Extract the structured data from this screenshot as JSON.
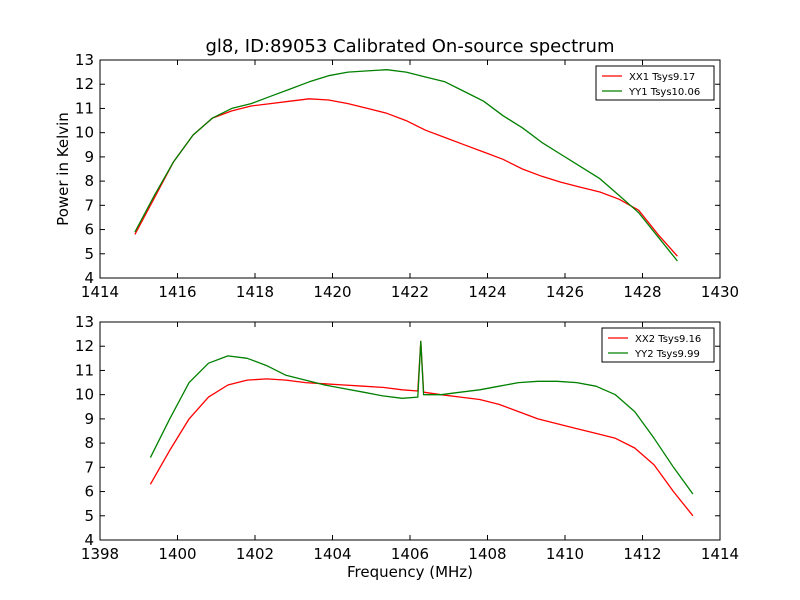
{
  "chart_data": [
    {
      "type": "line",
      "title": "gl8, ID:89053 Calibrated On-source spectrum",
      "xlabel": "",
      "ylabel": "Power in Kelvin",
      "xlim": [
        1414,
        1430
      ],
      "ylim": [
        4,
        13
      ],
      "xticks": [
        "1414",
        "1416",
        "1418",
        "1420",
        "1422",
        "1424",
        "1426",
        "1428",
        "1430"
      ],
      "yticks": [
        "4",
        "5",
        "6",
        "7",
        "8",
        "9",
        "10",
        "11",
        "12",
        "13"
      ],
      "grid": false,
      "legend_position": "top-right",
      "series": [
        {
          "name": "XX1 Tsys9.17",
          "color": "#ff0000",
          "x": [
            1414.9,
            1415.4,
            1415.9,
            1416.4,
            1416.9,
            1417.4,
            1417.9,
            1418.4,
            1418.9,
            1419.4,
            1419.9,
            1420.4,
            1420.9,
            1421.4,
            1421.9,
            1422.4,
            1422.9,
            1423.4,
            1423.9,
            1424.4,
            1424.9,
            1425.4,
            1425.9,
            1426.4,
            1426.9,
            1427.4,
            1427.9,
            1428.4,
            1428.9
          ],
          "y": [
            5.8,
            7.3,
            8.8,
            9.9,
            10.6,
            10.9,
            11.1,
            11.2,
            11.3,
            11.4,
            11.35,
            11.2,
            11.0,
            10.8,
            10.5,
            10.1,
            9.8,
            9.5,
            9.2,
            8.9,
            8.5,
            8.2,
            7.95,
            7.75,
            7.55,
            7.25,
            6.8,
            5.8,
            4.9
          ]
        },
        {
          "name": "YY1 Tsys10.06",
          "color": "#008000",
          "x": [
            1414.9,
            1415.4,
            1415.9,
            1416.4,
            1416.9,
            1417.4,
            1417.9,
            1418.4,
            1418.9,
            1419.4,
            1419.9,
            1420.4,
            1420.9,
            1421.4,
            1421.9,
            1422.4,
            1422.9,
            1423.4,
            1423.9,
            1424.4,
            1424.9,
            1425.4,
            1425.9,
            1426.4,
            1426.9,
            1427.4,
            1427.9,
            1428.4,
            1428.9
          ],
          "y": [
            5.9,
            7.4,
            8.8,
            9.9,
            10.6,
            11.0,
            11.2,
            11.5,
            11.8,
            12.1,
            12.35,
            12.5,
            12.55,
            12.6,
            12.5,
            12.3,
            12.1,
            11.7,
            11.3,
            10.7,
            10.2,
            9.6,
            9.1,
            8.6,
            8.1,
            7.4,
            6.7,
            5.7,
            4.7
          ]
        }
      ]
    },
    {
      "type": "line",
      "title": "",
      "xlabel": "Frequency (MHz)",
      "ylabel": "",
      "xlim": [
        1398,
        1414
      ],
      "ylim": [
        4,
        13
      ],
      "xticks": [
        "1398",
        "1400",
        "1402",
        "1404",
        "1406",
        "1408",
        "1410",
        "1412",
        "1414"
      ],
      "yticks": [
        "4",
        "5",
        "6",
        "7",
        "8",
        "9",
        "10",
        "11",
        "12",
        "13"
      ],
      "grid": false,
      "legend_position": "top-right",
      "series": [
        {
          "name": "XX2 Tsys9.16",
          "color": "#ff0000",
          "x": [
            1399.3,
            1399.8,
            1400.3,
            1400.8,
            1401.3,
            1401.8,
            1402.3,
            1402.8,
            1403.3,
            1403.8,
            1404.3,
            1404.8,
            1405.3,
            1405.8,
            1406.2,
            1406.28,
            1406.35,
            1406.8,
            1407.3,
            1407.8,
            1408.3,
            1408.8,
            1409.3,
            1409.8,
            1410.3,
            1410.8,
            1411.3,
            1411.8,
            1412.3,
            1412.8,
            1413.3
          ],
          "y": [
            6.3,
            7.7,
            9.0,
            9.9,
            10.4,
            10.6,
            10.65,
            10.6,
            10.5,
            10.45,
            10.4,
            10.35,
            10.3,
            10.2,
            10.15,
            12.2,
            10.1,
            10.0,
            9.9,
            9.8,
            9.6,
            9.3,
            9.0,
            8.8,
            8.6,
            8.4,
            8.2,
            7.8,
            7.1,
            6.0,
            5.0
          ]
        },
        {
          "name": "YY2 Tsys9.99",
          "color": "#008000",
          "x": [
            1399.3,
            1399.8,
            1400.3,
            1400.8,
            1401.3,
            1401.8,
            1402.3,
            1402.8,
            1403.3,
            1403.8,
            1404.3,
            1404.8,
            1405.3,
            1405.8,
            1406.2,
            1406.28,
            1406.35,
            1406.8,
            1407.3,
            1407.8,
            1408.3,
            1408.8,
            1409.3,
            1409.8,
            1410.3,
            1410.8,
            1411.3,
            1411.8,
            1412.3,
            1412.8,
            1413.3
          ],
          "y": [
            7.4,
            9.0,
            10.5,
            11.3,
            11.6,
            11.5,
            11.2,
            10.8,
            10.6,
            10.4,
            10.25,
            10.1,
            9.95,
            9.85,
            9.9,
            12.2,
            10.0,
            10.0,
            10.1,
            10.2,
            10.35,
            10.5,
            10.55,
            10.55,
            10.5,
            10.35,
            10.0,
            9.3,
            8.2,
            7.0,
            5.9
          ]
        }
      ]
    }
  ]
}
